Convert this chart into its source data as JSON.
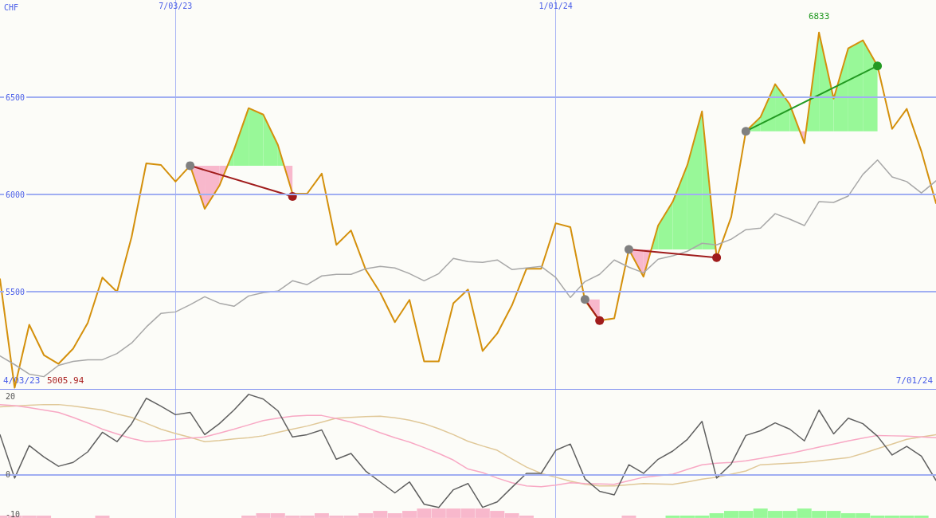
{
  "chart_data": [
    {
      "type": "line",
      "ylabel": "CHF",
      "marker": "none",
      "grid": true,
      "x": [
        "2023-04-10",
        "2023-04-17",
        "2023-04-24",
        "2023-05-01",
        "2023-05-08",
        "2023-05-15",
        "2023-05-22",
        "2023-05-29",
        "2023-06-05",
        "2023-06-12",
        "2023-06-19",
        "2023-06-26",
        "2023-07-03",
        "2023-07-10",
        "2023-07-17",
        "2023-07-24",
        "2023-07-31",
        "2023-08-07",
        "2023-08-14",
        "2023-08-21",
        "2023-08-28",
        "2023-09-04",
        "2023-09-11",
        "2023-09-18",
        "2023-09-25",
        "2023-10-02",
        "2023-10-09",
        "2023-10-16",
        "2023-10-23",
        "2023-10-30",
        "2023-11-06",
        "2023-11-13",
        "2023-11-20",
        "2023-11-27",
        "2023-12-04",
        "2023-12-11",
        "2023-12-18",
        "2023-12-25",
        "2024-01-01",
        "2024-01-08",
        "2024-01-15",
        "2024-01-22",
        "2024-01-29",
        "2024-02-05",
        "2024-02-12",
        "2024-02-19",
        "2024-02-26",
        "2024-03-04",
        "2024-03-11",
        "2024-03-18",
        "2024-03-25",
        "2024-04-01",
        "2024-04-08",
        "2024-04-15",
        "2024-04-22",
        "2024-04-29",
        "2024-05-06",
        "2024-05-13",
        "2024-05-20",
        "2024-05-27",
        "2024-06-03",
        "2024-06-10",
        "2024-06-17",
        "2024-06-24",
        "2024-07-01"
      ],
      "xlim": [
        "2023-04-10",
        "2024-07-01"
      ],
      "xticks": [
        {
          "value": "2023-07-03",
          "label": "7/03/23"
        },
        {
          "value": "2024-01-01",
          "label": "1/01/24"
        }
      ],
      "ylim": [
        5000,
        7000
      ],
      "yticks": [
        5500,
        6000,
        6500
      ],
      "annotations": [
        "4/03/23",
        "5005.94",
        "7/01/24",
        {
          "text": "6833",
          "x": "2024-05-06",
          "y": 6833
        }
      ],
      "series": [
        {
          "color": "#d4900c",
          "values": [
            5565,
            5005.94,
            5330,
            5174,
            5129,
            5207,
            5339,
            5573,
            5499,
            5782,
            6160,
            6152,
            6066,
            6148,
            5926,
            6045,
            6230,
            6444,
            6411,
            6255,
            6004,
            6004,
            6107,
            5741,
            5815,
            5614,
            5495,
            5343,
            5458,
            5141,
            5141,
            5441,
            5511,
            5195,
            5285,
            5429,
            5618,
            5618,
            5852,
            5832,
            5454,
            5351,
            5363,
            5717,
            5577,
            5840,
            5963,
            6152,
            6427,
            5675,
            5885,
            6325,
            6398,
            6567,
            6464,
            6263,
            6833,
            6493,
            6752,
            6793,
            6661,
            6337,
            6440,
            6222,
            5955
          ]
        },
        {
          "color": "#a8a8a8",
          "values": [
            5170,
            5125,
            5076,
            5063,
            5121,
            5141,
            5150,
            5150,
            5182,
            5236,
            5318,
            5388,
            5396,
            5433,
            5474,
            5441,
            5425,
            5478,
            5495,
            5503,
            5556,
            5536,
            5581,
            5589,
            5589,
            5618,
            5630,
            5622,
            5593,
            5556,
            5593,
            5671,
            5655,
            5651,
            5663,
            5614,
            5622,
            5630,
            5573,
            5470,
            5552,
            5589,
            5663,
            5626,
            5597,
            5667,
            5684,
            5708,
            5749,
            5741,
            5770,
            5819,
            5827,
            5901,
            5873,
            5840,
            5963,
            5959,
            5992,
            6103,
            6177,
            6090,
            6066,
            6008,
            6070
          ]
        },
        {
          "type": "line",
          "marker": "circle",
          "color": "#a01c1c",
          "colors": [
            "#808080",
            "#a01c1c"
          ],
          "x": [
            "2023-07-10",
            "2023-08-28"
          ],
          "values": [
            6148,
            5990
          ]
        },
        {
          "type": "line",
          "marker": "circle",
          "color": "#a01c1c",
          "colors": [
            "#808080",
            "#a01c1c"
          ],
          "x": [
            "2024-01-15",
            "2024-01-22"
          ],
          "values": [
            5460,
            5351
          ]
        },
        {
          "type": "line",
          "marker": "circle",
          "color": "#a01c1c",
          "colors": [
            "#808080",
            "#a01c1c"
          ],
          "x": [
            "2024-02-05",
            "2024-03-18"
          ],
          "values": [
            5717,
            5675
          ]
        },
        {
          "type": "line",
          "marker": "circle",
          "color": "#229a22",
          "colors": [
            "#808080",
            "#229a22"
          ],
          "x": [
            "2024-04-01",
            "2024-06-03"
          ],
          "values": [
            6325,
            6661
          ]
        }
      ]
    },
    {
      "type": "line",
      "marker": "none",
      "grid": "x",
      "tick_labels": "y",
      "x": [
        "2023-04-10",
        "2023-04-17",
        "2023-04-24",
        "2023-05-01",
        "2023-05-08",
        "2023-05-15",
        "2023-05-22",
        "2023-05-29",
        "2023-06-05",
        "2023-06-12",
        "2023-06-19",
        "2023-06-26",
        "2023-07-03",
        "2023-07-10",
        "2023-07-17",
        "2023-07-24",
        "2023-07-31",
        "2023-08-07",
        "2023-08-14",
        "2023-08-21",
        "2023-08-28",
        "2023-09-04",
        "2023-09-11",
        "2023-09-18",
        "2023-09-25",
        "2023-10-02",
        "2023-10-09",
        "2023-10-16",
        "2023-10-23",
        "2023-10-30",
        "2023-11-06",
        "2023-11-13",
        "2023-11-20",
        "2023-11-27",
        "2023-12-04",
        "2023-12-11",
        "2023-12-18",
        "2023-12-25",
        "2024-01-01",
        "2024-01-08",
        "2024-01-15",
        "2024-01-22",
        "2024-01-29",
        "2024-02-05",
        "2024-02-12",
        "2024-02-19",
        "2024-02-26",
        "2024-03-04",
        "2024-03-11",
        "2024-03-18",
        "2024-03-25",
        "2024-04-01",
        "2024-04-08",
        "2024-04-15",
        "2024-04-22",
        "2024-04-29",
        "2024-05-06",
        "2024-05-13",
        "2024-05-20",
        "2024-05-27",
        "2024-06-03",
        "2024-06-10",
        "2024-06-17",
        "2024-06-24",
        "2024-07-01"
      ],
      "xlim": [
        "2023-04-10",
        "2024-07-01"
      ],
      "xticks": [
        {
          "value": "2023-07-03",
          "label": null
        },
        {
          "value": "2024-01-01",
          "label": null
        }
      ],
      "ylim": [
        -11,
        22
      ],
      "yticks": [
        -10,
        0,
        20
      ],
      "ref_lines": [
        {
          "axis": "y",
          "value": 0,
          "color": "#a0aef2"
        }
      ],
      "series": [
        {
          "type": "bar",
          "base": [
            -11,
            -11,
            -11,
            -11,
            null,
            null,
            null,
            -11,
            null,
            null,
            null,
            null,
            null,
            null,
            null,
            null,
            null,
            -11,
            -11,
            -11,
            -11,
            -11,
            -11,
            -11,
            -11,
            -11,
            -11,
            -11,
            -11,
            -11,
            -11,
            -11,
            -11,
            -11,
            -11,
            -11,
            -11,
            null,
            null,
            null,
            null,
            null,
            null,
            -11,
            null,
            null,
            -11,
            -11,
            -11,
            -11,
            -11,
            -11,
            -11,
            -11,
            -11,
            -11,
            -11,
            -11,
            -11,
            -11,
            -11,
            -11,
            -11,
            -11,
            null
          ],
          "values": [
            0.6,
            0.6,
            0.6,
            0.6,
            null,
            null,
            null,
            0.6,
            null,
            null,
            null,
            null,
            null,
            null,
            null,
            null,
            null,
            0.6,
            1.2,
            1.2,
            0.6,
            0.6,
            1.2,
            0.6,
            0.6,
            1.2,
            1.8,
            1.2,
            1.8,
            2.4,
            2.4,
            2.4,
            2.4,
            2.4,
            1.8,
            1.2,
            0.6,
            null,
            null,
            null,
            null,
            null,
            null,
            0.6,
            null,
            null,
            0.6,
            0.6,
            0.6,
            1.2,
            1.8,
            1.8,
            2.4,
            1.8,
            1.8,
            2.4,
            1.8,
            1.8,
            1.2,
            1.2,
            0.6,
            0.6,
            0.6,
            0.6,
            null
          ],
          "colors": [
            "#f8b8cc",
            "#f8b8cc",
            "#f8b8cc",
            "#f8b8cc",
            null,
            null,
            null,
            "#f8b8cc",
            null,
            null,
            null,
            null,
            null,
            null,
            null,
            null,
            null,
            "#f8b8cc",
            "#f8b8cc",
            "#f8b8cc",
            "#f8b8cc",
            "#f8b8cc",
            "#f8b8cc",
            "#f8b8cc",
            "#f8b8cc",
            "#f8b8cc",
            "#f8b8cc",
            "#f8b8cc",
            "#f8b8cc",
            "#f8b8cc",
            "#f8b8cc",
            "#f8b8cc",
            "#f8b8cc",
            "#f8b8cc",
            "#f8b8cc",
            "#f8b8cc",
            "#f8b8cc",
            null,
            null,
            null,
            null,
            null,
            null,
            "#f8b8cc",
            null,
            null,
            "#98f898",
            "#98f898",
            "#98f898",
            "#98f898",
            "#98f898",
            "#98f898",
            "#98f898",
            "#98f898",
            "#98f898",
            "#98f898",
            "#98f898",
            "#98f898",
            "#98f898",
            "#98f898",
            "#98f898",
            "#98f898",
            "#98f898",
            "#98f898",
            null
          ]
        },
        {
          "color": "#e0c898",
          "values": [
            17.4,
            17.6,
            17.8,
            18.0,
            18.0,
            17.6,
            17.1,
            16.6,
            15.6,
            14.7,
            13.2,
            11.7,
            10.6,
            9.6,
            8.5,
            8.8,
            9.2,
            9.5,
            10.0,
            10.9,
            11.7,
            12.5,
            13.5,
            14.5,
            14.7,
            14.9,
            15.0,
            14.6,
            14.0,
            13.1,
            11.8,
            10.3,
            8.6,
            7.4,
            6.3,
            4.1,
            2.0,
            0.4,
            -0.6,
            -1.6,
            -2.4,
            -2.8,
            -2.8,
            -2.5,
            -2.2,
            -2.3,
            -2.4,
            -1.8,
            -1.1,
            -0.6,
            0.2,
            1.0,
            2.6,
            2.8,
            3.0,
            3.2,
            3.6,
            4.0,
            4.4,
            5.5,
            6.7,
            7.9,
            9.1,
            9.7,
            10.3
          ]
        },
        {
          "color": "#f8a8c4",
          "values": [
            18.0,
            17.7,
            17.2,
            16.6,
            16.0,
            14.7,
            13.3,
            11.7,
            10.5,
            9.3,
            8.5,
            8.7,
            9.1,
            9.4,
            9.7,
            10.7,
            11.7,
            12.8,
            13.9,
            14.5,
            15.0,
            15.2,
            15.2,
            14.4,
            13.5,
            12.2,
            10.8,
            9.5,
            8.4,
            7.0,
            5.5,
            3.8,
            1.5,
            0.6,
            -0.8,
            -2.0,
            -2.8,
            -3.0,
            -2.6,
            -2.0,
            -2.2,
            -2.3,
            -2.4,
            -1.5,
            -0.6,
            -0.2,
            0.2,
            1.4,
            2.6,
            3.0,
            3.2,
            3.6,
            4.2,
            4.9,
            5.5,
            6.3,
            7.1,
            7.9,
            8.7,
            9.4,
            10.1,
            10.0,
            9.9,
            9.7,
            9.5
          ]
        },
        {
          "color": "#606060",
          "values": [
            10.3,
            -0.8,
            7.5,
            4.6,
            2.2,
            3.2,
            5.9,
            10.9,
            8.5,
            13.1,
            19.6,
            17.6,
            15.4,
            16.0,
            10.3,
            13.1,
            16.6,
            20.6,
            19.4,
            16.4,
            9.7,
            10.3,
            11.5,
            4.0,
            5.5,
            1.0,
            -1.8,
            -4.6,
            -1.8,
            -7.5,
            -8.3,
            -3.8,
            -2.2,
            -8.3,
            -6.9,
            -3.2,
            0.4,
            0.4,
            6.3,
            7.9,
            -1.0,
            -4.2,
            -5.1,
            2.6,
            0.4,
            4.0,
            6.1,
            9.1,
            13.7,
            -0.8,
            2.8,
            10.1,
            11.3,
            13.3,
            11.7,
            8.7,
            16.6,
            10.5,
            14.5,
            13.1,
            9.9,
            5.1,
            7.3,
            4.8,
            -1.4
          ]
        }
      ]
    }
  ]
}
